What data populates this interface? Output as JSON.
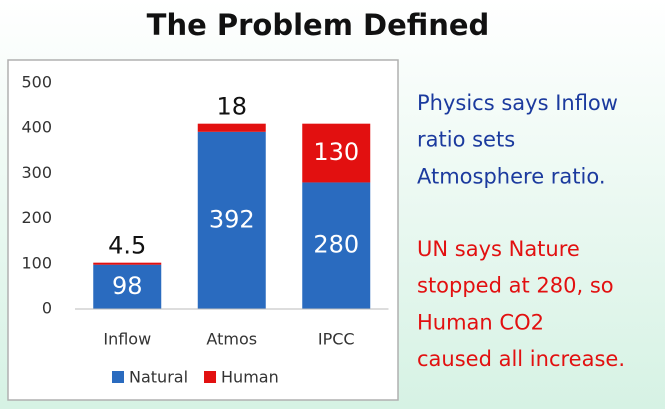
{
  "chart_data": {
    "type": "bar",
    "stacked": true,
    "title": "The Problem Defined",
    "categories": [
      "Inflow",
      "Atmos",
      "IPCC"
    ],
    "series": [
      {
        "name": "Natural",
        "color": "#2a6bbf",
        "values": [
          98,
          392,
          280
        ]
      },
      {
        "name": "Human",
        "color": "#e21010",
        "values": [
          4.5,
          18,
          130
        ]
      }
    ],
    "ylim": [
      0,
      500
    ],
    "yticks": [
      0,
      100,
      200,
      300,
      400,
      500
    ],
    "grid": false,
    "legend": "bottom"
  },
  "side_text": [
    {
      "color": "#1b3a9e",
      "lines": [
        "Physics says Inflow",
        "ratio sets",
        "Atmosphere ratio."
      ]
    },
    {
      "color": "#e21010",
      "lines": [
        "UN says Nature",
        "stopped at 280, so",
        "Human CO2",
        "caused all increase."
      ]
    }
  ]
}
